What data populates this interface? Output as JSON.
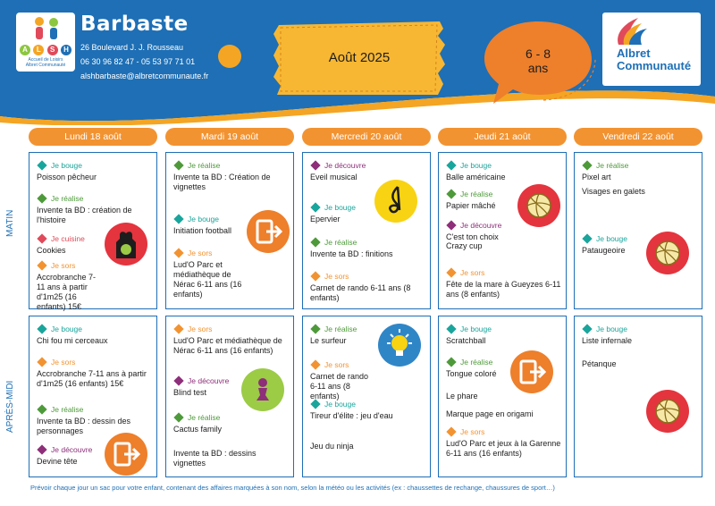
{
  "header": {
    "logo_letters": [
      "A",
      "L",
      "S",
      "H"
    ],
    "logo_sub_1": "Accueil de Loisirs",
    "logo_sub_2": "Albret Communauté",
    "centre_name": "Barbaste",
    "address": "26 Boulevard J. J. Rousseau",
    "phones": "06 30 96 82 47 - 05 53 97 71 01",
    "email": "alshbarbaste@albretcommunaute.fr",
    "month": "Août 2025",
    "age_line1": "6 - 8",
    "age_line2": "ans",
    "brand_1": "Albret",
    "brand_2": "Communauté"
  },
  "colors": {
    "blue": "#1e6fb5",
    "orange": "#f29331",
    "yellow": "#f7b733",
    "je_bouge": "#1aa59c",
    "je_realise": "#4e9a3a",
    "je_sors": "#f29331",
    "je_cuisine": "#e04a5a",
    "je_decouvre": "#8e2f7a",
    "badge_red": "#e4343e",
    "badge_orange": "#ee7f2b",
    "badge_green": "#9ccb46",
    "badge_yellow": "#f8d313",
    "badge_blue": "#2f86c7"
  },
  "periods": {
    "morning": "MATIN",
    "afternoon": "APRÈS-MIDI"
  },
  "days": [
    {
      "label": "Lundi 18 août",
      "morning": [
        {
          "cat": "Je bouge",
          "type": "je_bouge",
          "name": "Poisson pêcheur"
        },
        {
          "cat": "Je réalise",
          "type": "je_realise",
          "name": "Invente ta BD : création de l'histoire"
        },
        {
          "cat": "Je cuisine",
          "type": "je_cuisine",
          "name": "Cookies"
        },
        {
          "cat": "Je sors",
          "type": "je_sors",
          "name": "Accrobranche 7-11 ans à partir d'1m25 (16 enfants) 15€"
        }
      ],
      "afternoon": [
        {
          "cat": "Je bouge",
          "type": "je_bouge",
          "name": "Chi fou mi cerceaux"
        },
        {
          "cat": "Je sors",
          "type": "je_sors",
          "name": "Accrobranche 7-11 ans à partir d'1m25 (16 enfants) 15€"
        },
        {
          "cat": "Je réalise",
          "type": "je_realise",
          "name": "Invente ta BD : dessin des personnages"
        },
        {
          "cat": "Je découvre",
          "type": "je_decouvre",
          "name": "Devine tête"
        }
      ]
    },
    {
      "label": "Mardi 19 août",
      "morning": [
        {
          "cat": "Je réalise",
          "type": "je_realise",
          "name": "Invente ta BD : Création de vignettes"
        },
        {
          "cat": "Je bouge",
          "type": "je_bouge",
          "name": "Initiation football"
        },
        {
          "cat": "Je sors",
          "type": "je_sors",
          "name": "Lud'O Parc et médiathèque de Nérac 6-11 ans (16 enfants)"
        }
      ],
      "afternoon": [
        {
          "cat": "Je sors",
          "type": "je_sors",
          "name": "Lud'O Parc et médiathèque de Nérac 6-11 ans (16 enfants)"
        },
        {
          "cat": "Je découvre",
          "type": "je_decouvre",
          "name": "Blind test"
        },
        {
          "cat": "Je réalise",
          "type": "je_realise",
          "name": "Cactus family"
        },
        {
          "cat": "",
          "type": "",
          "name": "Invente ta BD : dessins vignettes"
        }
      ]
    },
    {
      "label": "Mercredi 20 août",
      "morning": [
        {
          "cat": "Je découvre",
          "type": "je_decouvre",
          "name": "Eveil musical"
        },
        {
          "cat": "Je bouge",
          "type": "je_bouge",
          "name": "Epervier"
        },
        {
          "cat": "Je réalise",
          "type": "je_realise",
          "name": "Invente ta BD : finitions"
        },
        {
          "cat": "Je sors",
          "type": "je_sors",
          "name": "Carnet de rando 6-11 ans (8 enfants)"
        }
      ],
      "afternoon": [
        {
          "cat": "Je réalise",
          "type": "je_realise",
          "name": "Le surfeur"
        },
        {
          "cat": "Je sors",
          "type": "je_sors",
          "name": "Carnet de rando 6-11 ans (8 enfants)"
        },
        {
          "cat": "Je bouge",
          "type": "je_bouge",
          "name": "Tireur d'élite : jeu d'eau"
        },
        {
          "cat": "",
          "type": "",
          "name": "Jeu du ninja"
        }
      ]
    },
    {
      "label": "Jeudi 21 août",
      "morning": [
        {
          "cat": "Je bouge",
          "type": "je_bouge",
          "name": "Balle américaine"
        },
        {
          "cat": "Je réalise",
          "type": "je_realise",
          "name": "Papier mâché"
        },
        {
          "cat": "Je découvre",
          "type": "je_decouvre",
          "name": "C'est ton choix"
        },
        {
          "cat": "",
          "type": "",
          "name": "Crazy cup"
        },
        {
          "cat": "Je sors",
          "type": "je_sors",
          "name": "Fête de la mare à Gueyzes 6-11 ans (8 enfants)"
        }
      ],
      "afternoon": [
        {
          "cat": "Je bouge",
          "type": "je_bouge",
          "name": "Scratchball"
        },
        {
          "cat": "Je réalise",
          "type": "je_realise",
          "name": "Tongue coloré"
        },
        {
          "cat": "",
          "type": "",
          "name": "Le phare"
        },
        {
          "cat": "",
          "type": "",
          "name": "Marque page en origami"
        },
        {
          "cat": "Je sors",
          "type": "je_sors",
          "name": "Lud'O Parc et jeux à la Garenne 6-11 ans (16 enfants)"
        }
      ]
    },
    {
      "label": "Vendredi 22 août",
      "morning": [
        {
          "cat": "Je réalise",
          "type": "je_realise",
          "name": "Pixel art"
        },
        {
          "cat": "",
          "type": "",
          "name": "Visages en galets"
        },
        {
          "cat": "Je bouge",
          "type": "je_bouge",
          "name": "Pataugeoire"
        }
      ],
      "afternoon": [
        {
          "cat": "Je bouge",
          "type": "je_bouge",
          "name": "Liste infernale"
        },
        {
          "cat": "",
          "type": "",
          "name": "Pétanque"
        }
      ]
    }
  ],
  "footer": "Prévoir chaque jour un sac pour votre enfant, contenant des affaires marquées à son nom, selon la météo ou les activités (ex : chaussettes de rechange, chaussures de sport…)"
}
